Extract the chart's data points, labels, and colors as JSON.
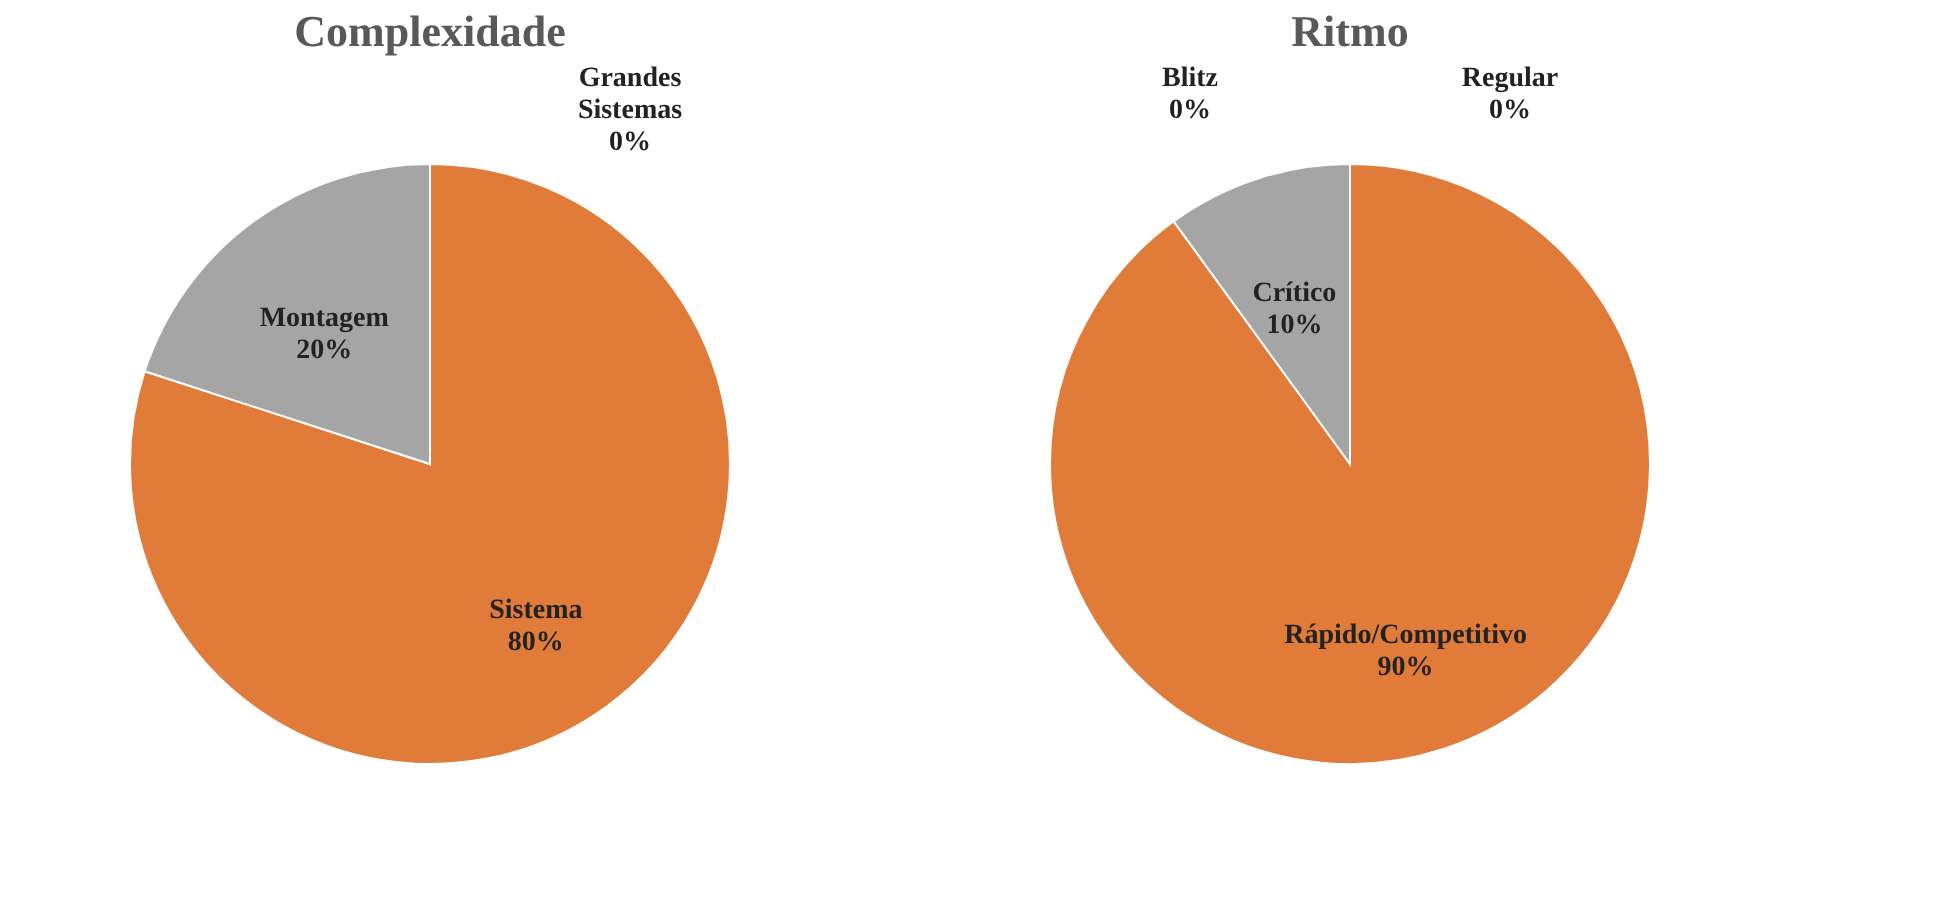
{
  "chart_data": [
    {
      "type": "pie",
      "title": "Complexidade",
      "categories": [
        "Sistema",
        "Montagem",
        "Grandes Sistemas"
      ],
      "values": [
        80,
        20,
        0
      ],
      "value_labels": [
        "80%",
        "20%",
        "0%"
      ],
      "colors": [
        "#e07b39",
        "#a5a5a5",
        "#4472c4"
      ]
    },
    {
      "type": "pie",
      "title": "Ritmo",
      "categories": [
        "Regular",
        "Rápido/Competitivo",
        "Crítico",
        "Blitz"
      ],
      "values": [
        0,
        90,
        10,
        0
      ],
      "value_labels": [
        "0%",
        "90%",
        "10%",
        "0%"
      ],
      "colors": [
        "#4472c4",
        "#e07b39",
        "#a5a5a5",
        "#ffc000"
      ]
    }
  ]
}
